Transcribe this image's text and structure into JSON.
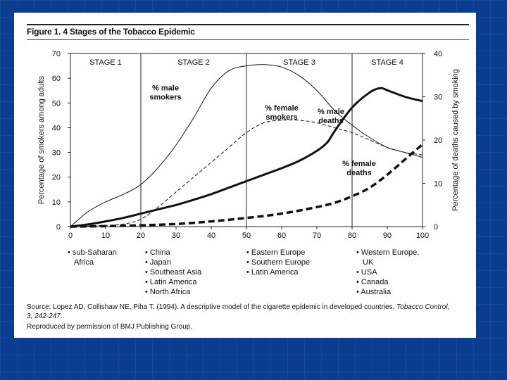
{
  "figure": {
    "title": "Figure 1. 4 Stages of the Tobacco Epidemic",
    "source_prefix": "Source: Lopez AD, Collishaw NE, Piha T. (1994). A descriptive model of the cigarette epidemic in developed countries. ",
    "source_journal": "Tobacco Control,",
    "source_volume": "3, 242-247.",
    "reproduced": "Reproduced by permission of BMJ Publishing Group."
  },
  "regions": [
    {
      "stage": "STAGE 1",
      "items": [
        "• sub-Saharan",
        "  Africa"
      ]
    },
    {
      "stage": "STAGE 2",
      "items": [
        "• China",
        "• Japan",
        "• Southeast Asia",
        "• Latin America",
        "• North Africa"
      ]
    },
    {
      "stage": "STAGE 3",
      "items": [
        "• Eastern Europe",
        "• Southern Europe",
        "• Latin America"
      ]
    },
    {
      "stage": "STAGE 4",
      "items": [
        "• Western Europe,",
        "  UK",
        "• USA",
        "• Canada",
        "• Australia"
      ]
    }
  ],
  "colors": {
    "background": "#0a3d8f",
    "panel": "#ffffff",
    "ink": "#111111"
  },
  "chart_data": {
    "type": "line",
    "ylabel": "Percentage of smokers among adults",
    "y2label": "Percentage of deaths caused by smoking",
    "xlim": [
      0,
      100
    ],
    "ylim": [
      0,
      70
    ],
    "y2lim": [
      0,
      40
    ],
    "x_ticks": [
      0,
      10,
      20,
      30,
      40,
      50,
      60,
      70,
      80,
      90,
      100
    ],
    "y_ticks": [
      0,
      10,
      20,
      30,
      40,
      50,
      60,
      70
    ],
    "y2_ticks": [
      0,
      10,
      20,
      30,
      40
    ],
    "stages": [
      {
        "label": "STAGE 1",
        "from": 0,
        "to": 20
      },
      {
        "label": "STAGE 2",
        "from": 20,
        "to": 50
      },
      {
        "label": "STAGE 3",
        "from": 50,
        "to": 80
      },
      {
        "label": "STAGE 4",
        "from": 80,
        "to": 100
      }
    ],
    "series": [
      {
        "name": "% male smokers",
        "label_lines": [
          "% male",
          "smokers"
        ],
        "axis": "left",
        "style": "thin",
        "label_at": [
          27,
          55
        ],
        "x": [
          0,
          5,
          10,
          15,
          20,
          25,
          30,
          35,
          40,
          45,
          50,
          55,
          60,
          65,
          70,
          75,
          80,
          85,
          90,
          95,
          100
        ],
        "y": [
          0,
          6,
          10,
          13,
          17,
          24,
          33,
          44,
          56,
          63,
          65,
          65.5,
          64.5,
          61,
          55,
          47,
          41,
          36,
          32,
          30,
          28
        ]
      },
      {
        "name": "% female smokers",
        "label_lines": [
          "% female",
          "smokers"
        ],
        "axis": "left",
        "style": "thin-dashed",
        "label_at": [
          60,
          47
        ],
        "x": [
          0,
          10,
          15,
          20,
          25,
          30,
          35,
          40,
          45,
          50,
          55,
          60,
          65,
          70,
          75,
          80,
          85,
          90,
          95,
          100
        ],
        "y": [
          0,
          0.5,
          1,
          3,
          8,
          14,
          20,
          26,
          32,
          38,
          42,
          43,
          43,
          42,
          40,
          38,
          35,
          32,
          30,
          29
        ]
      },
      {
        "name": "% male deaths",
        "label_lines": [
          "% male",
          "deaths"
        ],
        "axis": "right",
        "style": "thick",
        "label_at": [
          74,
          26
        ],
        "x": [
          0,
          5,
          10,
          15,
          20,
          25,
          30,
          35,
          40,
          45,
          50,
          55,
          60,
          65,
          70,
          73,
          75,
          80,
          85,
          88,
          90,
          95,
          100
        ],
        "y": [
          0,
          0.5,
          1.2,
          2,
          3,
          4,
          5,
          6.2,
          7.5,
          9,
          10.5,
          12,
          13.5,
          15.2,
          17.5,
          19.5,
          22,
          27.5,
          31,
          32,
          31.5,
          30,
          29
        ]
      },
      {
        "name": "% female deaths",
        "label_lines": [
          "% female",
          "deaths"
        ],
        "axis": "right",
        "style": "thick-dashed",
        "label_at": [
          82,
          14
        ],
        "x": [
          0,
          10,
          20,
          30,
          40,
          50,
          60,
          70,
          75,
          80,
          85,
          90,
          95,
          100
        ],
        "y": [
          0,
          0.1,
          0.3,
          0.6,
          1.2,
          2,
          3,
          4.5,
          5.5,
          7,
          9,
          12,
          15.5,
          19
        ]
      }
    ]
  }
}
